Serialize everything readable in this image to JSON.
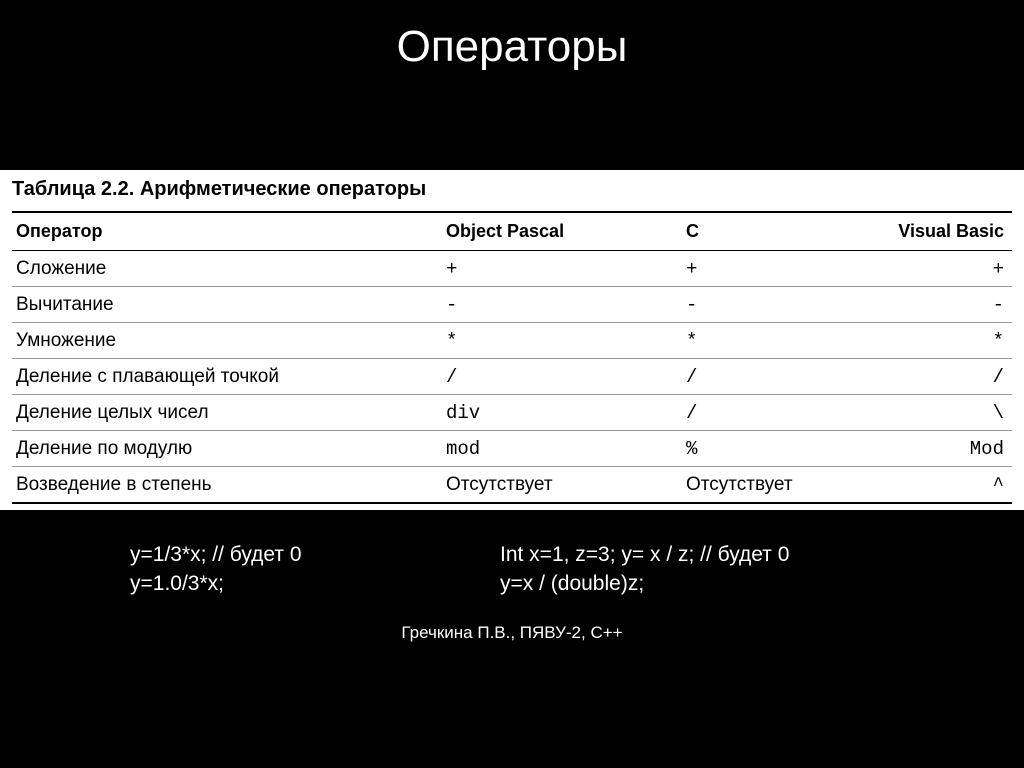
{
  "slide": {
    "title": "Операторы",
    "footer": "Гречкина П.В., ПЯВУ-2, С++"
  },
  "table": {
    "caption": "Таблица 2.2. Арифметические операторы",
    "columns": [
      "Оператор",
      "Object Pascal",
      "C",
      "Visual Basic"
    ],
    "rows": [
      {
        "op": "Сложение",
        "pascal": "+",
        "c": "+",
        "vb": "+",
        "pascal_mono": true,
        "c_mono": true,
        "vb_mono": true
      },
      {
        "op": "Вычитание",
        "pascal": "-",
        "c": "-",
        "vb": "-",
        "pascal_mono": true,
        "c_mono": true,
        "vb_mono": true
      },
      {
        "op": "Умножение",
        "pascal": "*",
        "c": "*",
        "vb": "*",
        "pascal_mono": true,
        "c_mono": true,
        "vb_mono": true
      },
      {
        "op": "Деление с плавающей точкой",
        "pascal": "/",
        "c": "/",
        "vb": "/",
        "pascal_mono": true,
        "c_mono": true,
        "vb_mono": true
      },
      {
        "op": "Деление целых чисел",
        "pascal": "div",
        "c": "/",
        "vb": "\\",
        "pascal_mono": true,
        "c_mono": true,
        "vb_mono": true
      },
      {
        "op": "Деление по модулю",
        "pascal": "mod",
        "c": "%",
        "vb": "Mod",
        "pascal_mono": true,
        "c_mono": true,
        "vb_mono": true
      },
      {
        "op": "Возведение в степень",
        "pascal": "Отсутствует",
        "c": "Отсутствует",
        "vb": "^",
        "pascal_mono": false,
        "c_mono": false,
        "vb_mono": true
      }
    ]
  },
  "examples": {
    "left": [
      "y=1/3*x;  // будет 0",
      "y=1.0/3*x;"
    ],
    "right": [
      "Int x=1, z=3;  y= x / z; // будет 0",
      "y=x / (double)z;"
    ]
  },
  "colors": {
    "background": "#000000",
    "text_light": "#ffffff",
    "table_bg": "#ffffff",
    "table_text": "#000000",
    "border_thick": "#000000",
    "border_thin": "#999999"
  }
}
